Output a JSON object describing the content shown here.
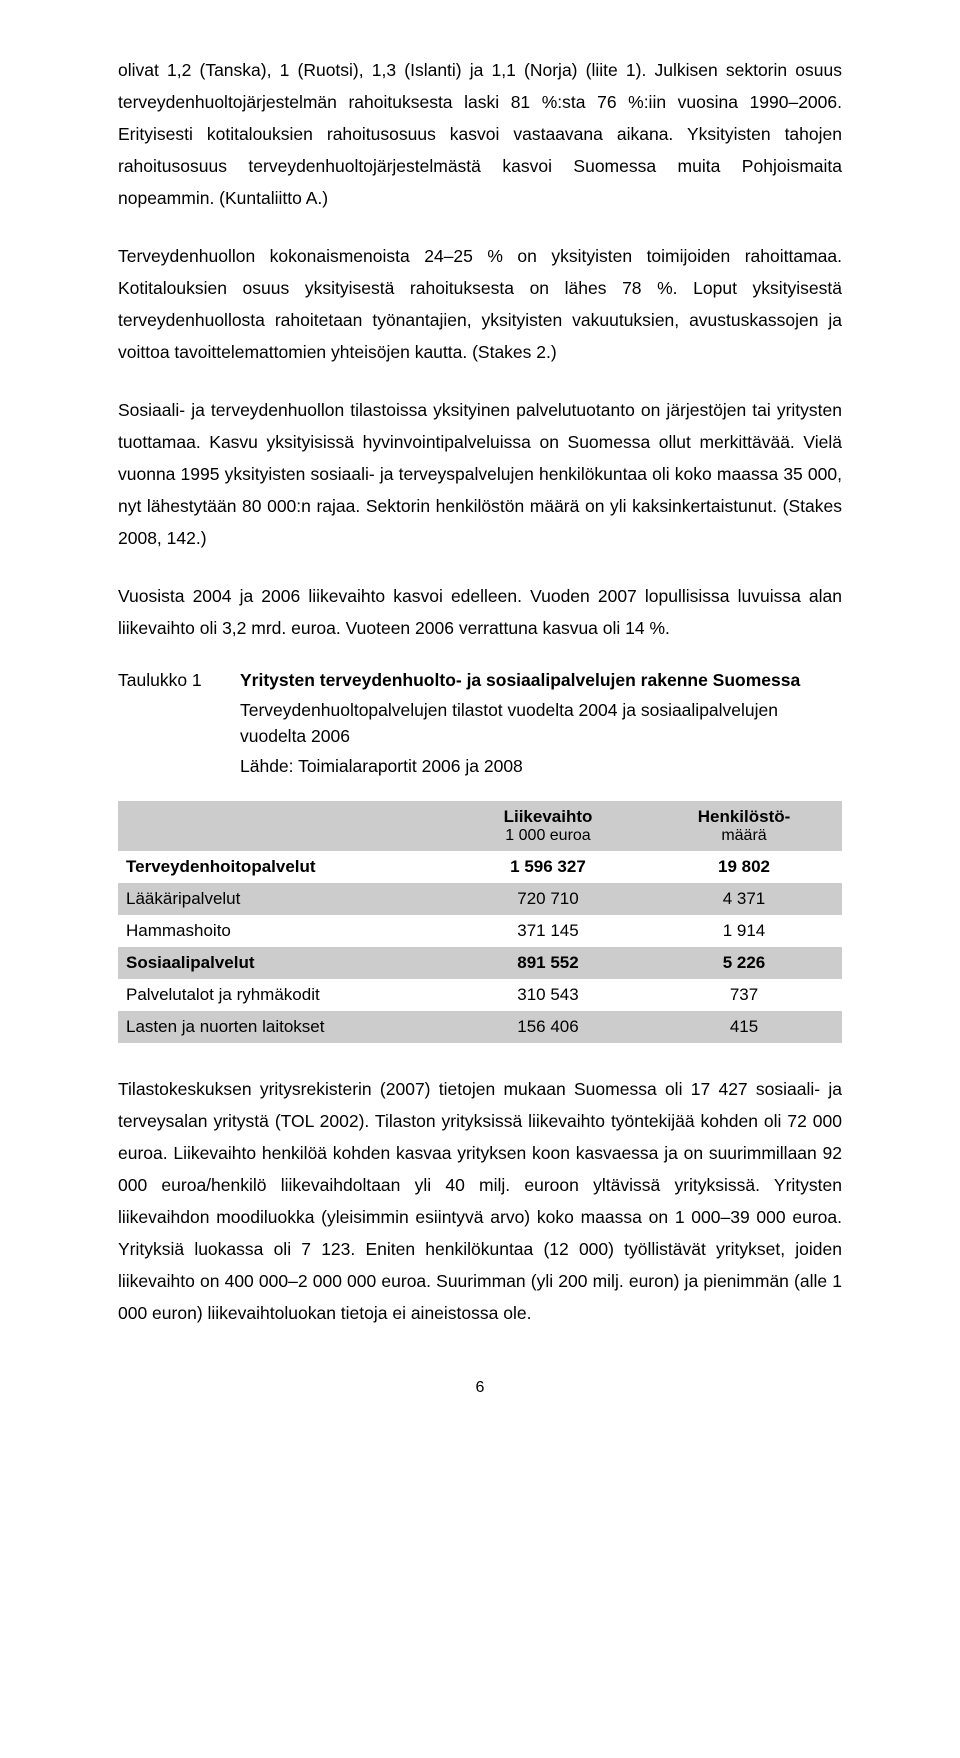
{
  "paragraphs": {
    "p1": "olivat 1,2 (Tanska), 1 (Ruotsi), 1,3 (Islanti) ja 1,1 (Norja) (liite 1). Julkisen sektorin osuus terveydenhuoltojärjestelmän rahoituksesta laski 81 %:sta 76 %:iin vuosina 1990–2006. Erityisesti kotitalouksien rahoitusosuus kasvoi vastaavana aikana. Yksityisten tahojen rahoitusosuus terveydenhuoltojärjestelmästä kasvoi Suomessa muita Pohjoismaita nopeammin. (Kuntaliitto A.)",
    "p2": "Terveydenhuollon kokonaismenoista 24–25 % on yksityisten toimijoiden rahoittamaa. Kotitalouksien osuus yksityisestä rahoituksesta on lähes 78 %. Loput yksityisestä terveydenhuollosta rahoitetaan työnantajien, yksityisten vakuutuksien, avustuskassojen ja voittoa tavoittelemattomien yhteisöjen kautta. (Stakes 2.)",
    "p3": "Sosiaali- ja terveydenhuollon tilastoissa yksityinen palvelutuotanto on järjestöjen tai yritysten tuottamaa. Kasvu yksityisissä hyvinvointipalveluissa on Suomessa ollut merkittävää. Vielä vuonna 1995 yksityisten sosiaali- ja terveyspalvelujen henkilökuntaa oli koko maassa 35 000, nyt lähestytään 80 000:n rajaa. Sektorin henkilöstön määrä on yli kaksinkertaistunut. (Stakes 2008, 142.)",
    "p4": "Vuosista 2004 ja 2006 liikevaihto kasvoi edelleen. Vuoden 2007 lopullisissa luvuissa alan liikevaihto oli 3,2 mrd. euroa. Vuoteen 2006 verrattuna kasvua oli 14 %.",
    "p5": "Tilastokeskuksen yritysrekisterin (2007) tietojen mukaan Suomessa oli 17 427 sosiaali- ja terveysalan yritystä (TOL 2002). Tilaston yrityksissä liikevaihto työntekijää kohden oli 72 000 euroa. Liikevaihto henkilöä kohden kasvaa yrityksen koon kasvaessa ja on suurimmillaan 92 000 euroa/henkilö liikevaihdoltaan yli 40 milj. euroon yltävissä yrityksissä. Yritysten liikevaihdon moodiluokka (yleisimmin esiintyvä arvo) koko maassa on 1 000–39 000 euroa. Yrityksiä luokassa oli 7 123. Eniten henkilökuntaa (12 000) työllistävät yritykset, joiden liikevaihto on 400 000–2 000 000 euroa. Suurimman (yli 200 milj. euron) ja pienimmän (alle 1 000 euron) liikevaihtoluokan tietoja ei aineistossa ole."
  },
  "table": {
    "label": "Taulukko 1",
    "title": "Yritysten terveydenhuolto- ja sosiaalipalvelujen rakenne Suomessa",
    "sub1": "Terveydenhuoltopalvelujen tilastot vuodelta 2004 ja sosiaalipalvelujen vuodelta 2006",
    "sub2": "Lähde: Toimialaraportit 2006 ja 2008",
    "columns": {
      "c1_top": "Liikevaihto",
      "c1_sub": "1 000 euroa",
      "c2_top": "Henkilöstö-",
      "c2_sub": "määrä"
    },
    "rows": [
      {
        "name": "Terveydenhoitopalvelut",
        "c1": "1 596 327",
        "c2": "19 802",
        "shaded": false,
        "bold": true
      },
      {
        "name": "Lääkäripalvelut",
        "c1": "720 710",
        "c2": "4 371",
        "shaded": true,
        "bold": false
      },
      {
        "name": "Hammashoito",
        "c1": "371 145",
        "c2": "1 914",
        "shaded": false,
        "bold": false
      },
      {
        "name": "Sosiaalipalvelut",
        "c1": "891 552",
        "c2": "5 226",
        "shaded": true,
        "bold": true
      },
      {
        "name": "Palvelutalot ja ryhmäkodit",
        "c1": "310 543",
        "c2": "737",
        "shaded": false,
        "bold": false
      },
      {
        "name": "Lasten ja nuorten laitokset",
        "c1": "156 406",
        "c2": "415",
        "shaded": true,
        "bold": false
      }
    ]
  },
  "page_number": "6"
}
